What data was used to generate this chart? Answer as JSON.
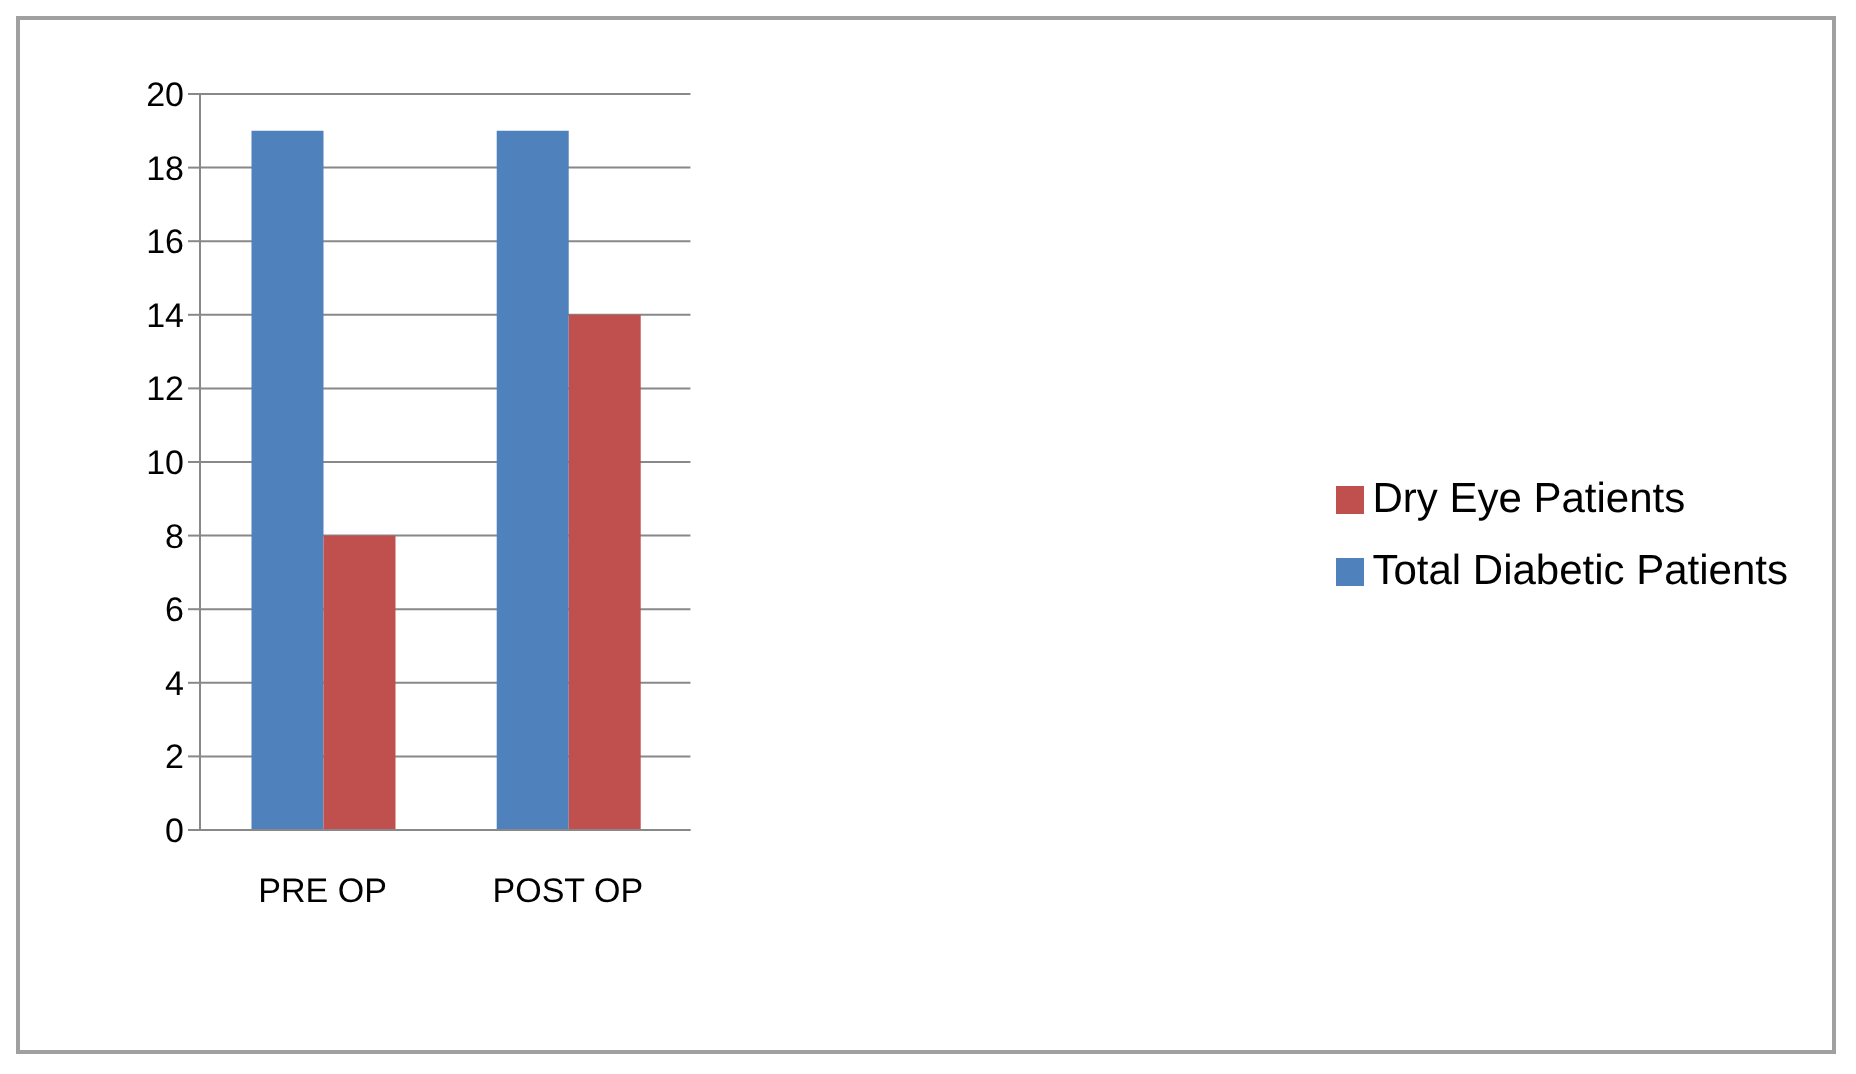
{
  "chart_data": {
    "type": "bar",
    "categories": [
      "PRE OP",
      "POST OP"
    ],
    "series": [
      {
        "name": "Total Diabetic Patients",
        "color": "#4f81bd",
        "values": [
          19,
          19
        ]
      },
      {
        "name": "Dry Eye Patients",
        "color": "#c0504d",
        "values": [
          8,
          14
        ]
      }
    ],
    "ylim": [
      0,
      20
    ],
    "yticks": [
      0,
      2,
      4,
      6,
      8,
      10,
      12,
      14,
      16,
      18,
      20
    ],
    "grid": "y",
    "legend": "right"
  }
}
